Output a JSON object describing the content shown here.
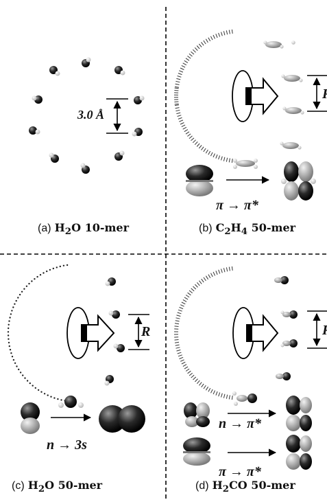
{
  "figure": {
    "panels": [
      {
        "id": "a",
        "prefix": "(a)",
        "caption_html": "H<sub>2</sub>O 10-mer",
        "distance_label": "3.0 Å"
      },
      {
        "id": "b",
        "prefix": "(b)",
        "caption_html": "C<sub>2</sub>H<sub>4</sub> 50-mer",
        "distance_label": "R",
        "transition": "π → π*"
      },
      {
        "id": "c",
        "prefix": "(c)",
        "caption_html": "H<sub>2</sub>O 50-mer",
        "distance_label": "R",
        "transition": "n → 3s"
      },
      {
        "id": "d",
        "prefix": "(d)",
        "caption_html": "H<sub>2</sub>CO 50-mer",
        "distance_label": "R",
        "transitions": [
          "n → π*",
          "π → π*"
        ]
      }
    ]
  }
}
